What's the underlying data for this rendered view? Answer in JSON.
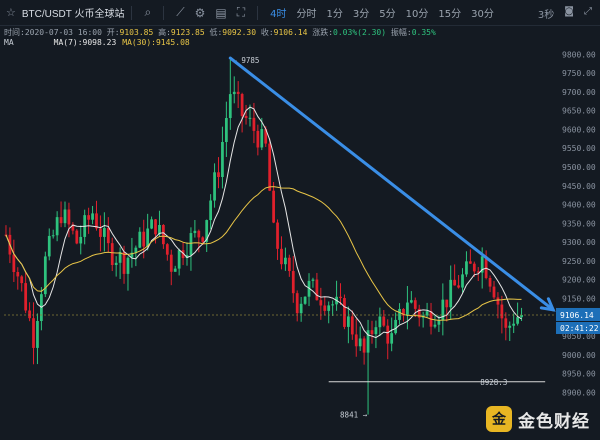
{
  "toolbar": {
    "symbol": "BTC/USDT 火币全球站",
    "intervals": [
      "4时",
      "分时",
      "1分",
      "3分",
      "5分",
      "10分",
      "15分",
      "30分"
    ],
    "active_interval": "4时",
    "right_label": "3秒"
  },
  "info": {
    "time_label": "时间:",
    "time": "2020-07-03 16:00",
    "open_label": "开:",
    "open": "9103.85",
    "high_label": "高:",
    "high": "9123.85",
    "low_label": "低:",
    "low": "9092.30",
    "close_label": "收:",
    "close": "9106.14",
    "change_label": "涨跌:",
    "change": "0.03%(2.30)",
    "amp_label": "振幅:",
    "amp": "0.35%"
  },
  "ma": {
    "label": "MA",
    "ma7": "MA(7):9098.23",
    "ma30": "MA(30):9145.08"
  },
  "watermark": {
    "text": "金色财经"
  },
  "colors": {
    "up": "#2ec27e",
    "down": "#e0202c",
    "trend": "#3a8ee6",
    "ma7": "#e6e6e6",
    "ma30": "#e8c547",
    "bg": "#141a22"
  },
  "chart_data": {
    "type": "candlestick",
    "ylim": [
      8800,
      9870
    ],
    "y_ticks": [
      9800,
      9750,
      9700,
      9650,
      9600,
      9550,
      9500,
      9450,
      9400,
      9350,
      9300,
      9250,
      9200,
      9150,
      9100,
      9050,
      9000,
      8950,
      8900
    ],
    "y_tick_labels": [
      "9800.00",
      "9750.00",
      "9700.00",
      "9650.00",
      "9600.00",
      "9550.00",
      "9500.00",
      "9450.00",
      "9400.00",
      "9350.00",
      "9300.00",
      "9250.00",
      "9200.00",
      "9150.00",
      "9100.00",
      "9050.00",
      "9000.00",
      "8950.00",
      "8900.00"
    ],
    "last_price": 9106.14,
    "last_price_label": "9106.14",
    "countdown_label": "02:41:22",
    "annotations": [
      {
        "text": "← 9785",
        "value": 9785,
        "index": 57
      },
      {
        "text": "8841 →",
        "value": 8841,
        "index": 92
      },
      {
        "text": "8928.3",
        "value": 8928.3,
        "index": 120
      }
    ],
    "support_level": 8928.3,
    "trend_line": {
      "start": {
        "index": 57,
        "value": 9790
      },
      "end": {
        "index": 137,
        "value": 9120
      }
    },
    "anchors": [
      [
        0,
        9320
      ],
      [
        4,
        9180
      ],
      [
        7,
        9050
      ],
      [
        10,
        9250
      ],
      [
        14,
        9380
      ],
      [
        18,
        9300
      ],
      [
        22,
        9380
      ],
      [
        26,
        9280
      ],
      [
        30,
        9250
      ],
      [
        34,
        9300
      ],
      [
        38,
        9350
      ],
      [
        42,
        9240
      ],
      [
        46,
        9300
      ],
      [
        50,
        9330
      ],
      [
        54,
        9500
      ],
      [
        57,
        9700
      ],
      [
        60,
        9640
      ],
      [
        63,
        9600
      ],
      [
        66,
        9550
      ],
      [
        68,
        9320
      ],
      [
        71,
        9230
      ],
      [
        74,
        9140
      ],
      [
        77,
        9180
      ],
      [
        81,
        9150
      ],
      [
        85,
        9120
      ],
      [
        88,
        9070
      ],
      [
        91,
        9000
      ],
      [
        94,
        9100
      ],
      [
        98,
        9040
      ],
      [
        102,
        9150
      ],
      [
        106,
        9100
      ],
      [
        110,
        9120
      ],
      [
        114,
        9180
      ],
      [
        118,
        9230
      ],
      [
        121,
        9260
      ],
      [
        124,
        9180
      ],
      [
        127,
        9060
      ],
      [
        129,
        9100
      ],
      [
        131,
        9106
      ]
    ]
  }
}
